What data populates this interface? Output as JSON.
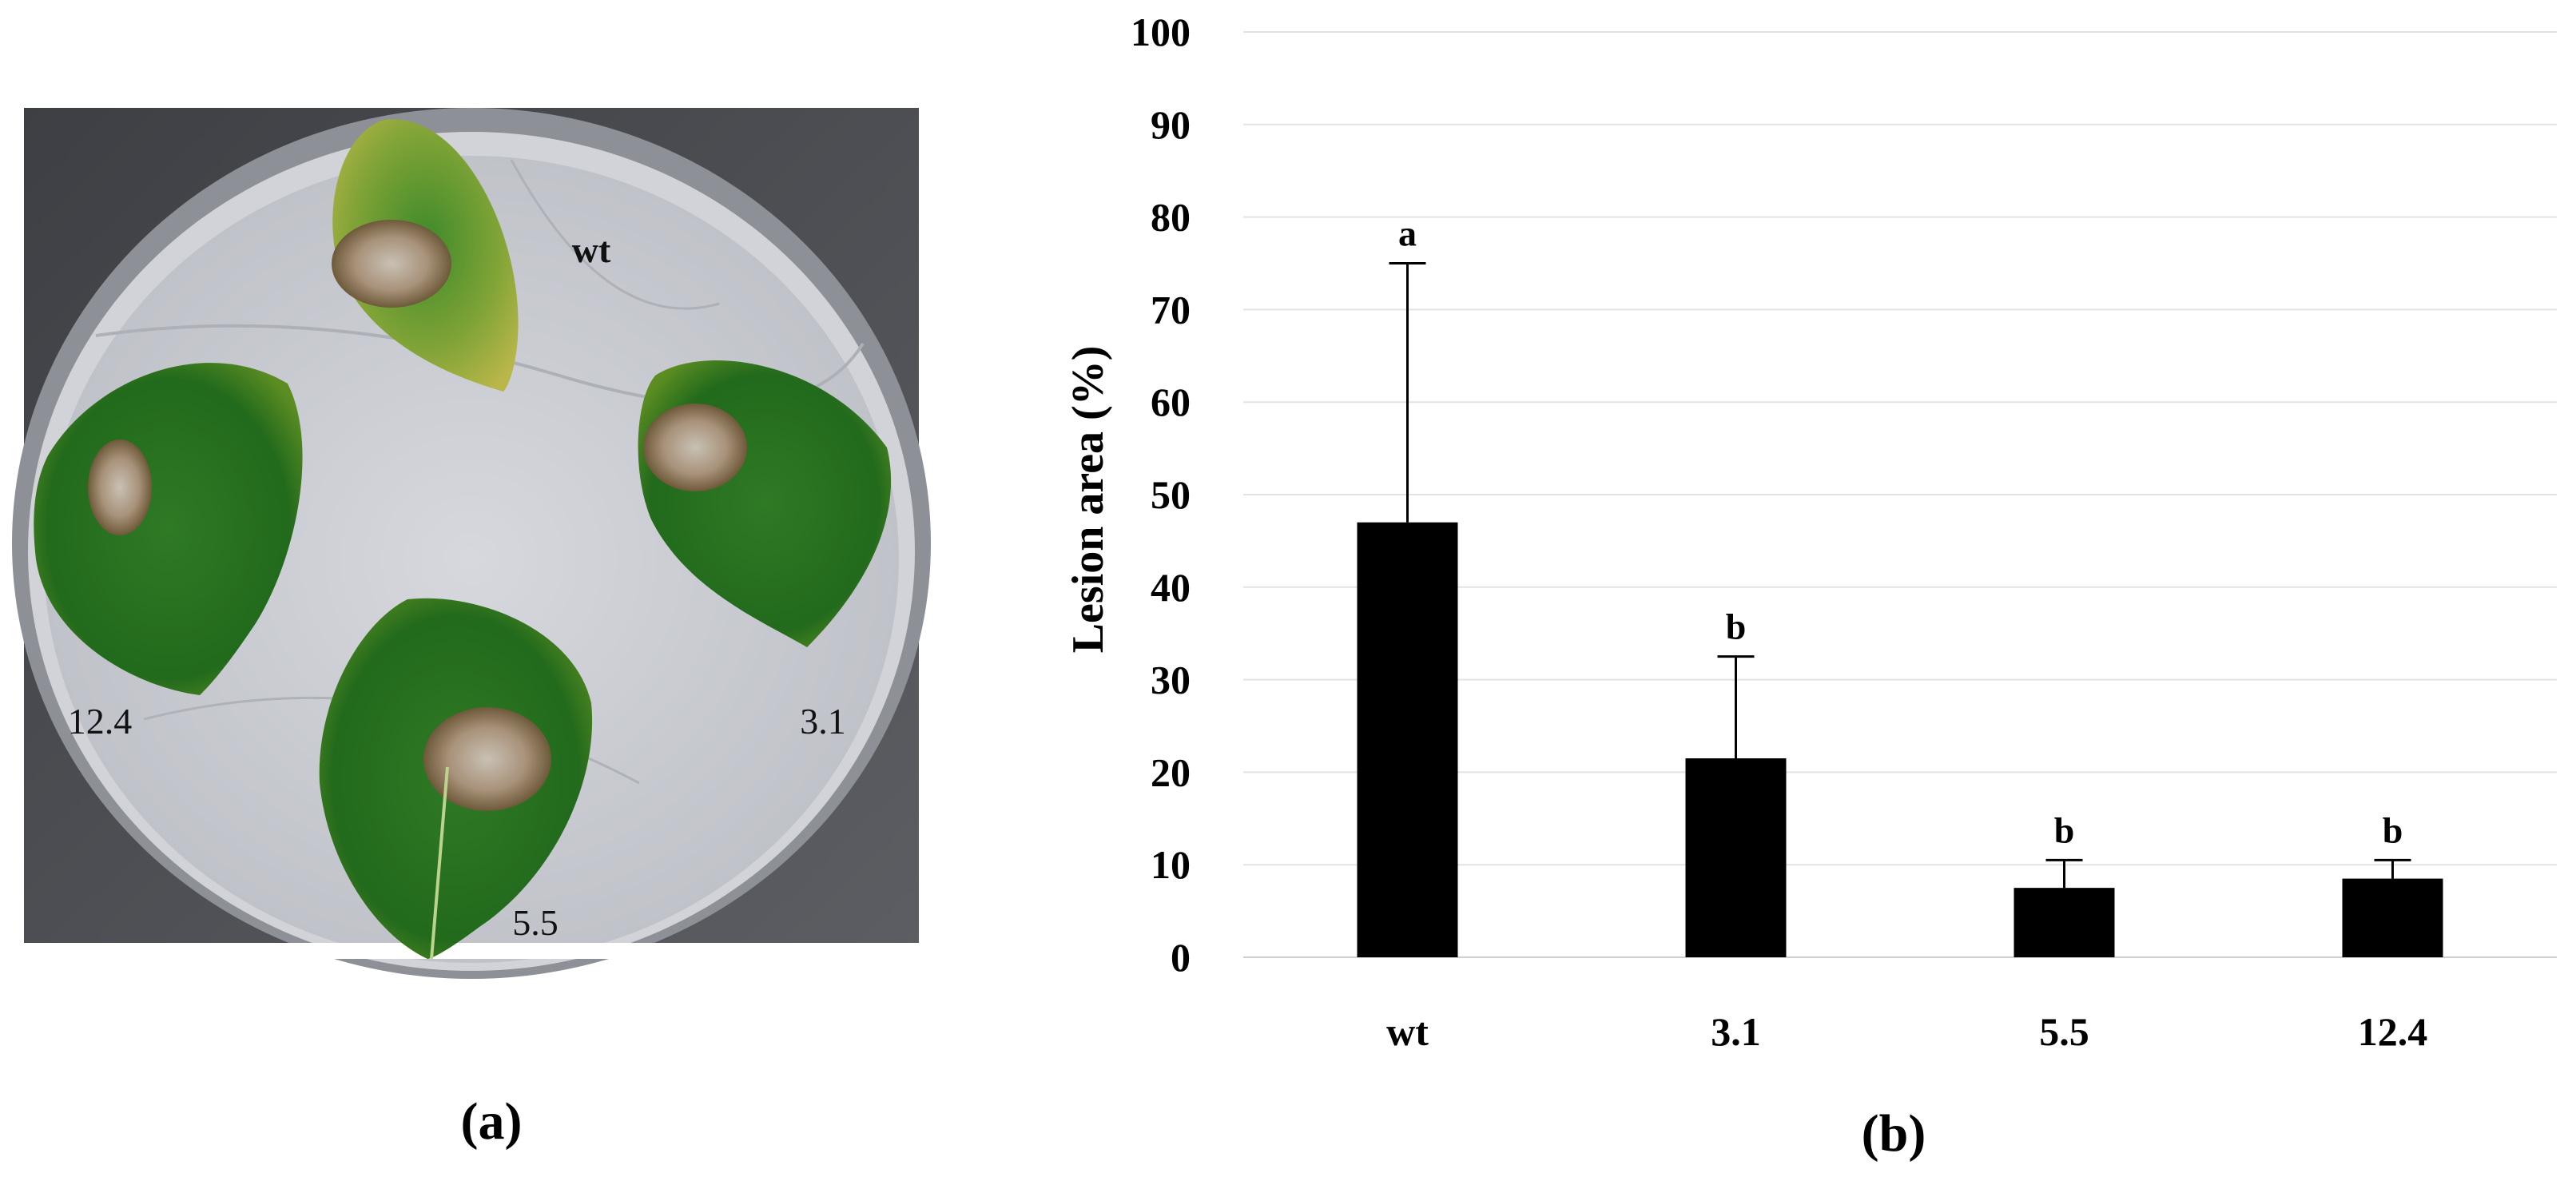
{
  "panel_a": {
    "label": "(a)",
    "leaf_labels": {
      "top": "wt",
      "right": "3.1",
      "bottom": "5.5",
      "left": "12.4"
    }
  },
  "panel_b": {
    "label": "(b)"
  },
  "chart_data": {
    "type": "bar",
    "categories": [
      "wt",
      "3.1",
      "5.5",
      "12.4"
    ],
    "series": [
      {
        "values": [
          47,
          21.5,
          7.5,
          8.5
        ],
        "error_plus": [
          28,
          11,
          3,
          2
        ],
        "color": "#000000"
      }
    ],
    "significance_letters": [
      "a",
      "b",
      "b",
      "b"
    ],
    "title": "",
    "xlabel": "",
    "ylabel": "Lesion area (%)",
    "ylim": [
      0,
      100
    ],
    "yticks": [
      0,
      10,
      20,
      30,
      40,
      50,
      60,
      70,
      80,
      90,
      100
    ],
    "grid": true,
    "legend": "none"
  }
}
